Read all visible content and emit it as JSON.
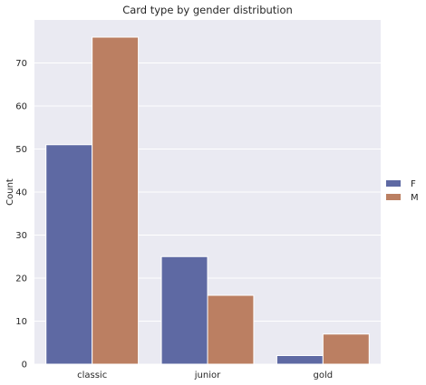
{
  "chart_data": {
    "type": "bar",
    "title": "Card type by gender distribution",
    "xlabel": "",
    "ylabel": "Count",
    "categories": [
      "classic",
      "junior",
      "gold"
    ],
    "series": [
      {
        "name": "F",
        "values": [
          51,
          25,
          2
        ],
        "color": "#5e69a3"
      },
      {
        "name": "M",
        "values": [
          76,
          16,
          7
        ],
        "color": "#bb7f62"
      }
    ],
    "ylim": [
      0,
      80
    ],
    "yticks": [
      0,
      10,
      20,
      30,
      40,
      50,
      60,
      70
    ],
    "grid": true,
    "legend_position": "right",
    "plot_background": "#eaeaf2",
    "grid_color": "#ffffff"
  }
}
